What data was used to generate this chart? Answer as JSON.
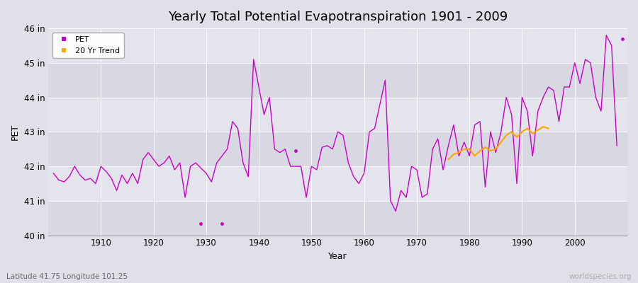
{
  "title": "Yearly Total Potential Evapotranspiration 1901 - 2009",
  "ylabel": "PET",
  "xlabel": "Year",
  "subtitle": "Latitude 41.75 Longitude 101.25",
  "watermark": "worldspecies.org",
  "pet_color": "#cc00cc",
  "trend_color": "#ffa500",
  "background_color": "#e0e0e8",
  "grid_color": "#ffffff",
  "ylim": [
    40,
    46
  ],
  "yticks": [
    40,
    41,
    42,
    43,
    44,
    45,
    46
  ],
  "ytick_labels": [
    "40 in",
    "41 in",
    "42 in",
    "43 in",
    "44 in",
    "45 in",
    "46 in"
  ],
  "years": [
    1901,
    1902,
    1903,
    1904,
    1905,
    1906,
    1907,
    1908,
    1909,
    1910,
    1911,
    1912,
    1913,
    1914,
    1915,
    1916,
    1917,
    1918,
    1919,
    1920,
    1921,
    1922,
    1923,
    1924,
    1925,
    1926,
    1927,
    1928,
    1930,
    1931,
    1932,
    1934,
    1935,
    1936,
    1937,
    1938,
    1939,
    1940,
    1941,
    1942,
    1943,
    1944,
    1945,
    1946,
    1948,
    1949,
    1950,
    1951,
    1952,
    1953,
    1954,
    1955,
    1956,
    1957,
    1958,
    1959,
    1960,
    1961,
    1962,
    1963,
    1964,
    1965,
    1966,
    1967,
    1968,
    1969,
    1970,
    1971,
    1972,
    1973,
    1974,
    1975,
    1976,
    1977,
    1978,
    1979,
    1980,
    1981,
    1982,
    1983,
    1984,
    1985,
    1986,
    1987,
    1988,
    1989,
    1990,
    1991,
    1992,
    1993,
    1994,
    1995,
    1996,
    1997,
    1998,
    1999,
    2000,
    2001,
    2002,
    2003,
    2004,
    2005,
    2006,
    2007,
    2008
  ],
  "pet_values": [
    41.8,
    41.6,
    41.55,
    41.7,
    42.0,
    41.75,
    41.6,
    41.65,
    41.5,
    42.0,
    41.85,
    41.65,
    41.3,
    41.75,
    41.5,
    41.8,
    41.5,
    42.2,
    42.4,
    42.2,
    42.0,
    42.1,
    42.3,
    41.9,
    42.1,
    41.1,
    42.0,
    42.1,
    41.8,
    41.55,
    42.1,
    42.5,
    43.3,
    43.1,
    42.1,
    41.7,
    45.1,
    44.3,
    43.5,
    44.0,
    42.5,
    42.4,
    42.5,
    42.0,
    42.0,
    41.1,
    42.0,
    41.9,
    42.55,
    42.6,
    42.5,
    43.0,
    42.9,
    42.1,
    41.7,
    41.5,
    41.8,
    43.0,
    43.1,
    43.8,
    44.5,
    41.0,
    40.7,
    41.3,
    41.1,
    42.0,
    41.9,
    41.1,
    41.2,
    42.5,
    42.8,
    41.9,
    42.6,
    43.2,
    42.3,
    42.7,
    42.3,
    43.2,
    43.3,
    41.4,
    43.0,
    42.4,
    43.0,
    44.0,
    43.5,
    41.5,
    44.0,
    43.6,
    42.3,
    43.6,
    44.0,
    44.3,
    44.2,
    43.3,
    44.3,
    44.3,
    45.0,
    44.4,
    45.1,
    45.0,
    44.0,
    43.6,
    45.8,
    45.5,
    42.6
  ],
  "isolated_years": [
    1929,
    1933,
    1947,
    2009
  ],
  "isolated_values": [
    40.35,
    40.35,
    42.45,
    45.7
  ],
  "trend_years": [
    1976,
    1977,
    1978,
    1979,
    1980,
    1981,
    1982,
    1983,
    1984,
    1985,
    1986,
    1987,
    1988,
    1989,
    1990,
    1991,
    1992,
    1993,
    1994,
    1995
  ],
  "trend_values": [
    42.2,
    42.35,
    42.4,
    42.5,
    42.5,
    42.3,
    42.45,
    42.55,
    42.45,
    42.5,
    42.7,
    42.9,
    43.0,
    42.85,
    43.0,
    43.1,
    42.95,
    43.05,
    43.15,
    43.1
  ],
  "legend_loc": "upper left",
  "title_fontsize": 13,
  "label_fontsize": 9,
  "tick_fontsize": 8.5,
  "figsize": [
    9.0,
    4.0
  ],
  "dpi": 100
}
